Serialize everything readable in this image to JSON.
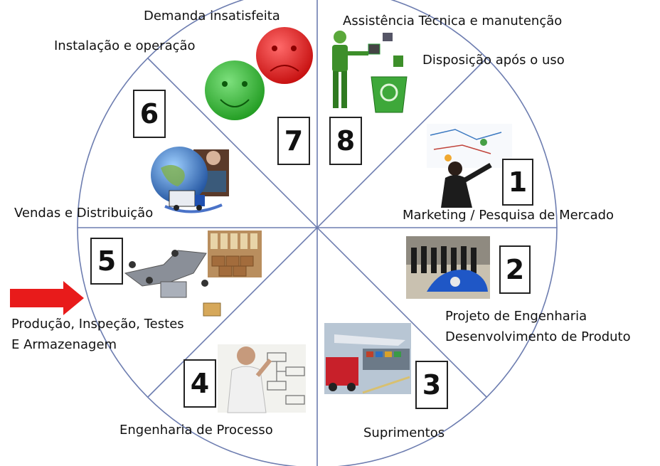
{
  "diagram": {
    "stages": [
      {
        "number": "1",
        "label": "Marketing / Pesquisa de Mercado",
        "image": "business-woman-whiteboard"
      },
      {
        "number": "2",
        "label_lines": [
          "Projeto de Engenharia",
          "Desenvolvimento de Produto"
        ],
        "image": "team-with-car-prototype"
      },
      {
        "number": "3",
        "label": "Suprimentos",
        "image": "truck-ship-plane-logistics"
      },
      {
        "number": "4",
        "label": "Engenharia de Processo",
        "image": "man-drawing-flowchart"
      },
      {
        "number": "5",
        "label_lines": [
          "Produção, Inspeção, Testes",
          "E Armazenagem"
        ],
        "image": "conveyor-belt-factory"
      },
      {
        "number": "6",
        "label": "Vendas e Distribuição",
        "image": "globe-truck-distribution"
      },
      {
        "number": "7",
        "labels": [
          "Instalação  e operação",
          "Demanda insatisfeita"
        ],
        "image": "happy-and-sad-faces"
      },
      {
        "number": "8",
        "labels": [
          "Assistência Técnica e manutenção",
          "Disposição após o uso"
        ],
        "image": "recycling-figure"
      }
    ],
    "highlight_arrow": "right-arrow-red",
    "colors": {
      "circle": "#6d7db0",
      "arrow": "#e81b1b",
      "happy": "#2fb52f",
      "sad": "#e21414"
    }
  }
}
